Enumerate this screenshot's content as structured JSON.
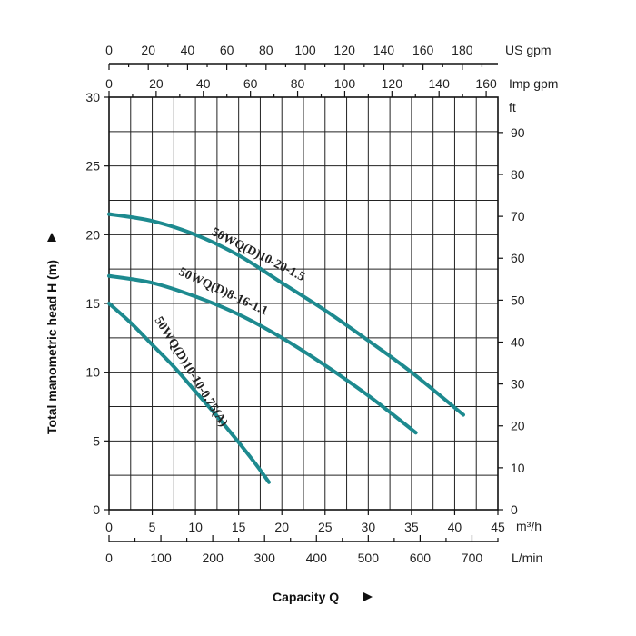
{
  "chart_data": {
    "type": "line",
    "xlabel": "Capacity Q",
    "ylabel": "Total manometric head H (m)",
    "xlim": [
      0,
      45
    ],
    "ylim": [
      0,
      30
    ],
    "grid": true,
    "x_unit": "m³/h",
    "y_right_unit": "ft",
    "x_ticks": [
      "0",
      "5",
      "10",
      "15",
      "20",
      "25",
      "30",
      "35",
      "40",
      "45"
    ],
    "y_ticks": [
      "0",
      "5",
      "10",
      "15",
      "20",
      "25",
      "30"
    ],
    "secondary_axes": {
      "lmin": {
        "unit": "L/min",
        "ticks": [
          "0",
          "100",
          "200",
          "300",
          "400",
          "500",
          "600",
          "700"
        ],
        "values": [
          0,
          100,
          200,
          300,
          400,
          500,
          600,
          700
        ]
      },
      "us_gpm": {
        "unit": "US gpm",
        "ticks": [
          "0",
          "20",
          "40",
          "60",
          "80",
          "100",
          "120",
          "140",
          "160",
          "180"
        ],
        "values": [
          0,
          20,
          40,
          60,
          80,
          100,
          120,
          140,
          160,
          180
        ]
      },
      "imp_gpm": {
        "unit": "Imp gpm",
        "ticks": [
          "0",
          "20",
          "40",
          "60",
          "80",
          "100",
          "120",
          "140",
          "160"
        ],
        "values": [
          0,
          20,
          40,
          60,
          80,
          100,
          120,
          140,
          160
        ]
      },
      "ft": {
        "unit": "ft",
        "ticks": [
          "0",
          "10",
          "20",
          "30",
          "40",
          "50",
          "60",
          "70",
          "80",
          "90"
        ],
        "values": [
          0,
          10,
          20,
          30,
          40,
          50,
          60,
          70,
          80,
          90
        ]
      }
    },
    "series": [
      {
        "name": "50WQ(D)10-20-1.5",
        "color": "#1d8a8f",
        "x": [
          0,
          5,
          10,
          15,
          20,
          25,
          30,
          35,
          41
        ],
        "y": [
          21.5,
          21.0,
          20.0,
          18.5,
          16.5,
          14.5,
          12.3,
          10.0,
          6.9
        ]
      },
      {
        "name": "50WQ(D)8-16-1.1",
        "color": "#1d8a8f",
        "x": [
          0,
          5,
          10,
          15,
          20,
          25,
          30,
          35.5
        ],
        "y": [
          17.0,
          16.5,
          15.5,
          14.2,
          12.5,
          10.5,
          8.3,
          5.6
        ]
      },
      {
        "name": "50WQ(D)10-10-0.75(A)",
        "color": "#1d8a8f",
        "x": [
          0,
          2.5,
          5,
          7.5,
          10,
          12.5,
          15,
          17,
          18.5
        ],
        "y": [
          15.0,
          13.6,
          12.0,
          10.4,
          8.6,
          6.8,
          4.9,
          3.3,
          2.0
        ]
      }
    ]
  }
}
